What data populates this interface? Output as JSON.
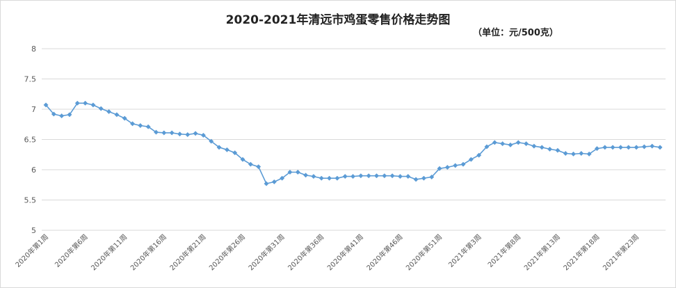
{
  "chart_data": {
    "type": "line",
    "title": "2020-2021年清远市鸡蛋零售价格走势图",
    "subtitle": "（单位：元/500克）",
    "ylim": [
      5,
      8
    ],
    "yticks": [
      "5",
      "5.5",
      "6",
      "6.5",
      "7",
      "7.5",
      "8"
    ],
    "grid": true,
    "legend": "none",
    "color": "#5b9bd5",
    "x_tick_labels": [
      "2020年第1周",
      "2020年第6周",
      "2020年第11周",
      "2020年第16周",
      "2020年第21周",
      "2020年第26周",
      "2020年第31周",
      "2020年第36周",
      "2020年第41周",
      "2020年第46周",
      "2020年第51周",
      "2021年第3周",
      "2021年第8周",
      "2021年第13周",
      "2021年第18周",
      "2021年第23周"
    ],
    "x_tick_every": 5,
    "series": [
      {
        "values": [
          7.07,
          6.92,
          6.89,
          6.91,
          7.1,
          7.1,
          7.07,
          7.01,
          6.96,
          6.91,
          6.85,
          6.76,
          6.73,
          6.71,
          6.62,
          6.61,
          6.61,
          6.59,
          6.58,
          6.6,
          6.57,
          6.47,
          6.37,
          6.33,
          6.28,
          6.17,
          6.09,
          6.05,
          5.77,
          5.8,
          5.86,
          5.96,
          5.96,
          5.91,
          5.89,
          5.86,
          5.86,
          5.86,
          5.89,
          5.89,
          5.9,
          5.9,
          5.9,
          5.9,
          5.9,
          5.89,
          5.89,
          5.84,
          5.86,
          5.88,
          6.02,
          6.04,
          6.07,
          6.09,
          6.17,
          6.24,
          6.38,
          6.45,
          6.43,
          6.41,
          6.45,
          6.43,
          6.39,
          6.37,
          6.34,
          6.32,
          6.27,
          6.26,
          6.27,
          6.26,
          6.35,
          6.37,
          6.37,
          6.37,
          6.37,
          6.37,
          6.38,
          6.39,
          6.37
        ]
      }
    ]
  }
}
